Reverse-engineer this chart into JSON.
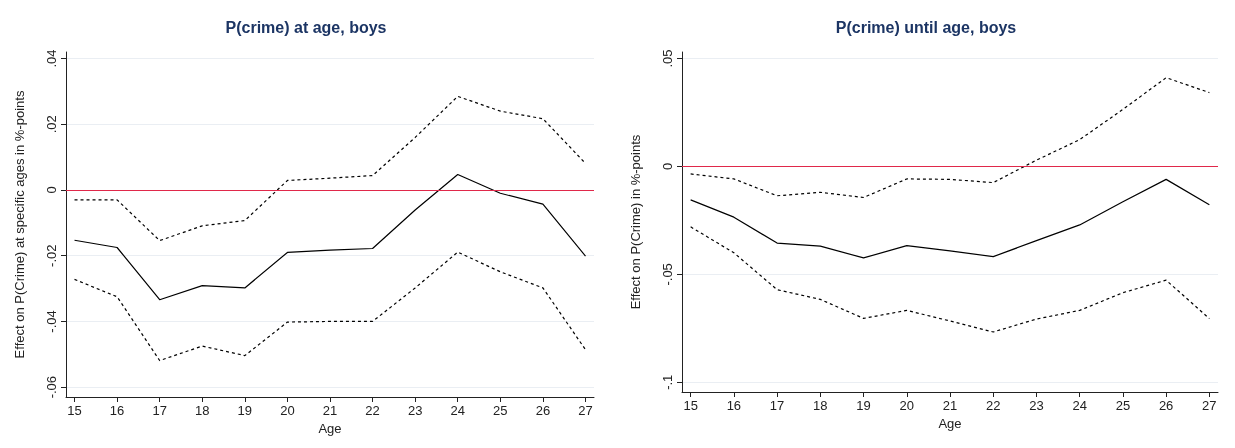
{
  "chart_data": [
    {
      "type": "line",
      "title": "P(crime) at age, boys",
      "xlabel": "Age",
      "ylabel": "Effect on P(Crime) at specific ages in %-points",
      "x": [
        15,
        16,
        17,
        18,
        19,
        20,
        21,
        22,
        23,
        24,
        25,
        26,
        27
      ],
      "series": [
        {
          "color": "#000000",
          "line_style": "solid",
          "values": [
            -0.0153,
            -0.0175,
            -0.0334,
            -0.0291,
            -0.0298,
            -0.019,
            -0.0183,
            -0.0178,
            -0.0061,
            0.0047,
            -0.001,
            -0.0043,
            -0.0201
          ]
        },
        {
          "color": "#000000",
          "line_style": "dashed",
          "values": [
            -0.003,
            -0.003,
            -0.0154,
            -0.0109,
            -0.0093,
            0.0029,
            0.0036,
            0.0044,
            0.016,
            0.0285,
            0.024,
            0.0217,
            0.0081
          ]
        },
        {
          "color": "#000000",
          "line_style": "dashed",
          "values": [
            -0.0272,
            -0.0325,
            -0.0519,
            -0.0475,
            -0.0504,
            -0.0402,
            -0.04,
            -0.04,
            -0.0298,
            -0.0189,
            -0.0249,
            -0.0298,
            -0.0486
          ]
        }
      ],
      "xlim": [
        14.8,
        27.2
      ],
      "xticks": [
        15,
        16,
        17,
        18,
        19,
        20,
        21,
        22,
        23,
        24,
        25,
        26,
        27
      ],
      "ylim": [
        -0.063,
        0.042
      ],
      "yticks": [
        {
          "value": -0.06,
          "label": "-.06"
        },
        {
          "value": -0.04,
          "label": "-.04"
        },
        {
          "value": -0.02,
          "label": "-.02"
        },
        0,
        {
          "value": 0.02,
          "label": ".02"
        },
        {
          "value": 0.04,
          "label": ".04"
        }
      ],
      "grid": "y",
      "marker": "none",
      "ref_lines": [
        {
          "axis": "y",
          "value": 0,
          "color": "#e0284a"
        }
      ]
    },
    {
      "type": "line",
      "title": "P(crime) until age, boys",
      "xlabel": "Age",
      "ylabel": "Effect on P(Crime) in %-points",
      "x": [
        15,
        16,
        17,
        18,
        19,
        20,
        21,
        22,
        23,
        24,
        25,
        26,
        27
      ],
      "series": [
        {
          "color": "#000000",
          "line_style": "solid",
          "values": [
            -0.0155,
            -0.0235,
            -0.0355,
            -0.0369,
            -0.0424,
            -0.0367,
            -0.0391,
            -0.0418,
            -0.0344,
            -0.0271,
            -0.0164,
            -0.006,
            -0.0178
          ]
        },
        {
          "color": "#000000",
          "line_style": "dashed",
          "values": [
            -0.0035,
            -0.0058,
            -0.0136,
            -0.012,
            -0.0144,
            -0.0058,
            -0.006,
            -0.0075,
            0.0029,
            0.0124,
            0.0264,
            0.0411,
            0.0342
          ]
        },
        {
          "color": "#000000",
          "line_style": "dashed",
          "values": [
            -0.028,
            -0.04,
            -0.0571,
            -0.0616,
            -0.0704,
            -0.0667,
            -0.0716,
            -0.0767,
            -0.0707,
            -0.0667,
            -0.0585,
            -0.0527,
            -0.0705
          ]
        }
      ],
      "xlim": [
        14.8,
        27.2
      ],
      "xticks": [
        15,
        16,
        17,
        18,
        19,
        20,
        21,
        22,
        23,
        24,
        25,
        26,
        27
      ],
      "ylim": [
        -0.1045,
        0.053
      ],
      "yticks": [
        {
          "value": -0.1,
          "label": "-.1"
        },
        {
          "value": -0.05,
          "label": "-.05"
        },
        0,
        {
          "value": 0.05,
          "label": ".05"
        }
      ],
      "grid": "y",
      "marker": "none",
      "ref_lines": [
        {
          "axis": "y",
          "value": 0,
          "color": "#e0284a"
        }
      ]
    }
  ]
}
